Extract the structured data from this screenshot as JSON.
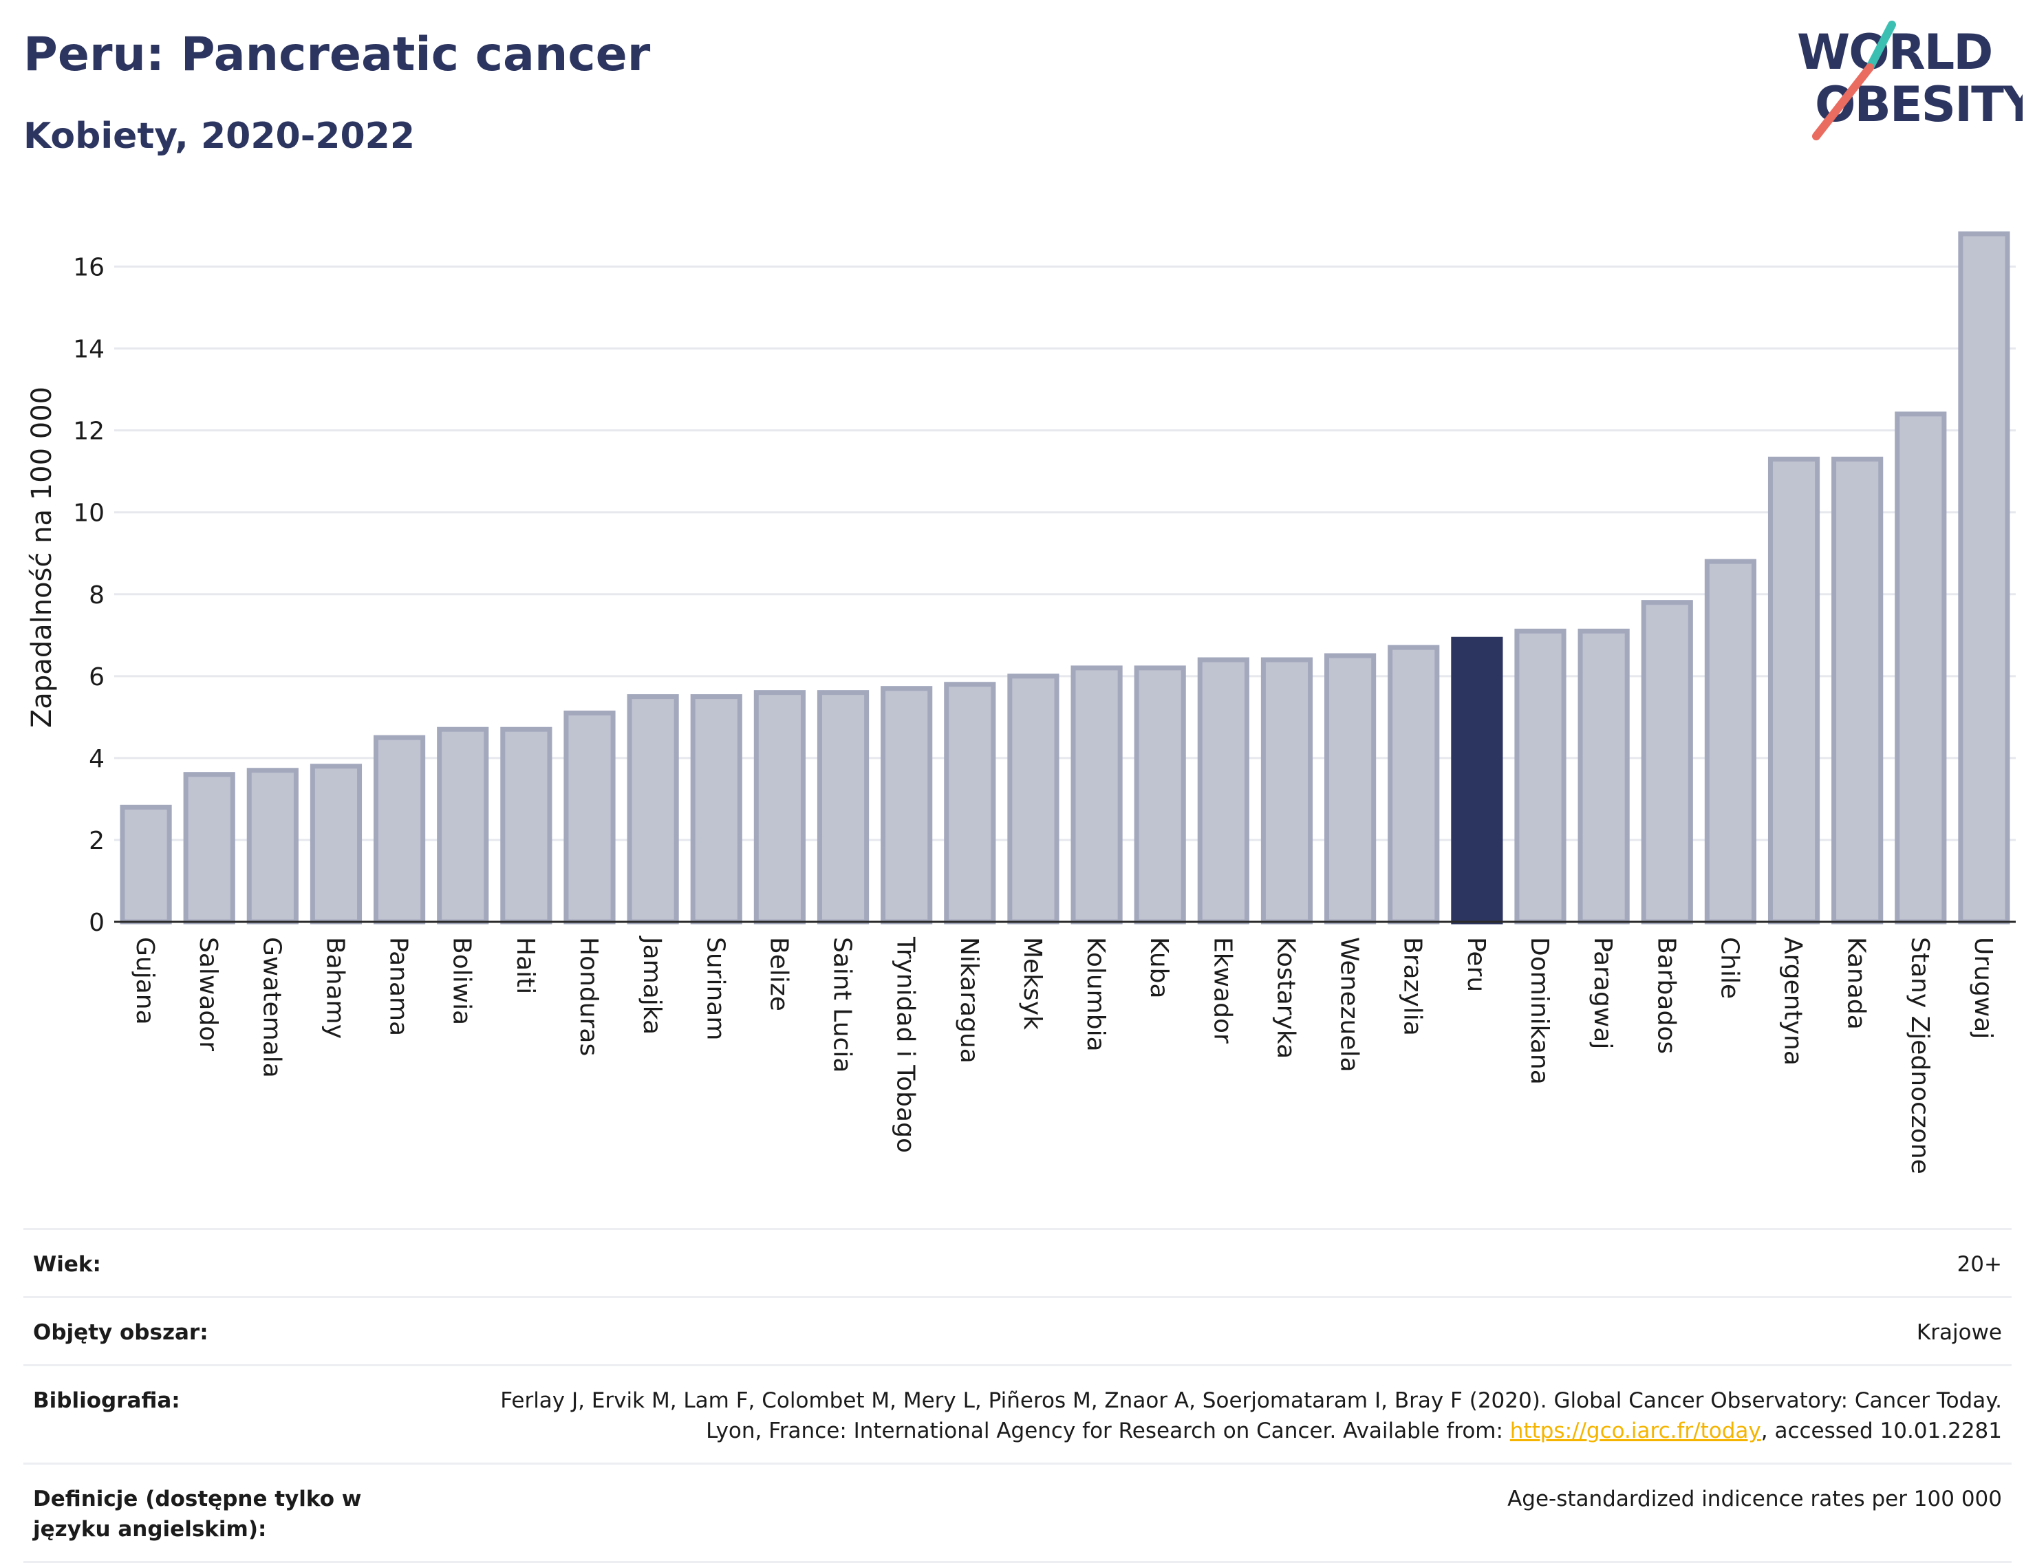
{
  "header": {
    "title": "Peru: Pancreatic cancer",
    "subtitle": "Kobiety, 2020-2022"
  },
  "logo": {
    "line1": "WORLD",
    "line2": "OBESITY",
    "colors": {
      "text": "#2c3560",
      "teal": "#3bbfb2",
      "coral": "#ea6b5f"
    }
  },
  "chart_data": {
    "type": "bar",
    "title": "Peru: Pancreatic cancer",
    "subtitle": "Kobiety, 2020-2022",
    "ylabel": "Zapadalność na 100 000",
    "xlabel": "",
    "ylim": [
      0,
      17
    ],
    "yticks": [
      0,
      2,
      4,
      6,
      8,
      10,
      12,
      14,
      16
    ],
    "grid": true,
    "highlight": "Peru",
    "colors": {
      "bar": "#c0c3d0",
      "bar_border": "#a3a8bd",
      "highlight": "#2c3560"
    },
    "categories": [
      "Gujana",
      "Salwador",
      "Gwatemala",
      "Bahamy",
      "Panama",
      "Boliwia",
      "Haiti",
      "Honduras",
      "Jamajka",
      "Surinam",
      "Belize",
      "Saint Lucia",
      "Trynidad i Tobago",
      "Nikaragua",
      "Meksyk",
      "Kolumbia",
      "Kuba",
      "Ekwador",
      "Kostaryka",
      "Wenezuela",
      "Brazylia",
      "Peru",
      "Dominikana",
      "Paragwaj",
      "Barbados",
      "Chile",
      "Argentyna",
      "Kanada",
      "Stany Zjednoczone",
      "Urugwaj"
    ],
    "values": [
      2.8,
      3.6,
      3.7,
      3.8,
      4.5,
      4.7,
      4.7,
      5.1,
      5.5,
      5.5,
      5.6,
      5.6,
      5.7,
      5.8,
      6.0,
      6.2,
      6.2,
      6.4,
      6.4,
      6.5,
      6.7,
      6.9,
      7.1,
      7.1,
      7.8,
      8.8,
      11.3,
      11.3,
      12.4,
      16.8
    ]
  },
  "meta": {
    "rows": [
      {
        "key": "Wiek:",
        "value": "20+"
      },
      {
        "key": "Objęty obszar:",
        "value": "Krajowe"
      },
      {
        "key": "Bibliografia:",
        "value_pre": "Ferlay J, Ervik M, Lam F, Colombet M, Mery L, Piñeros M, Znaor A, Soerjomataram I, Bray F (2020). Global Cancer Observatory: Cancer Today. Lyon, France: International Agency for Research on Cancer. Available from: ",
        "link": "https://gco.iarc.fr/today",
        "value_post": ", accessed 10.01.2281"
      },
      {
        "key": "Definicje (dostępne tylko w języku angielskim):",
        "value": "Age-standardized indicence rates per 100 000"
      }
    ]
  }
}
